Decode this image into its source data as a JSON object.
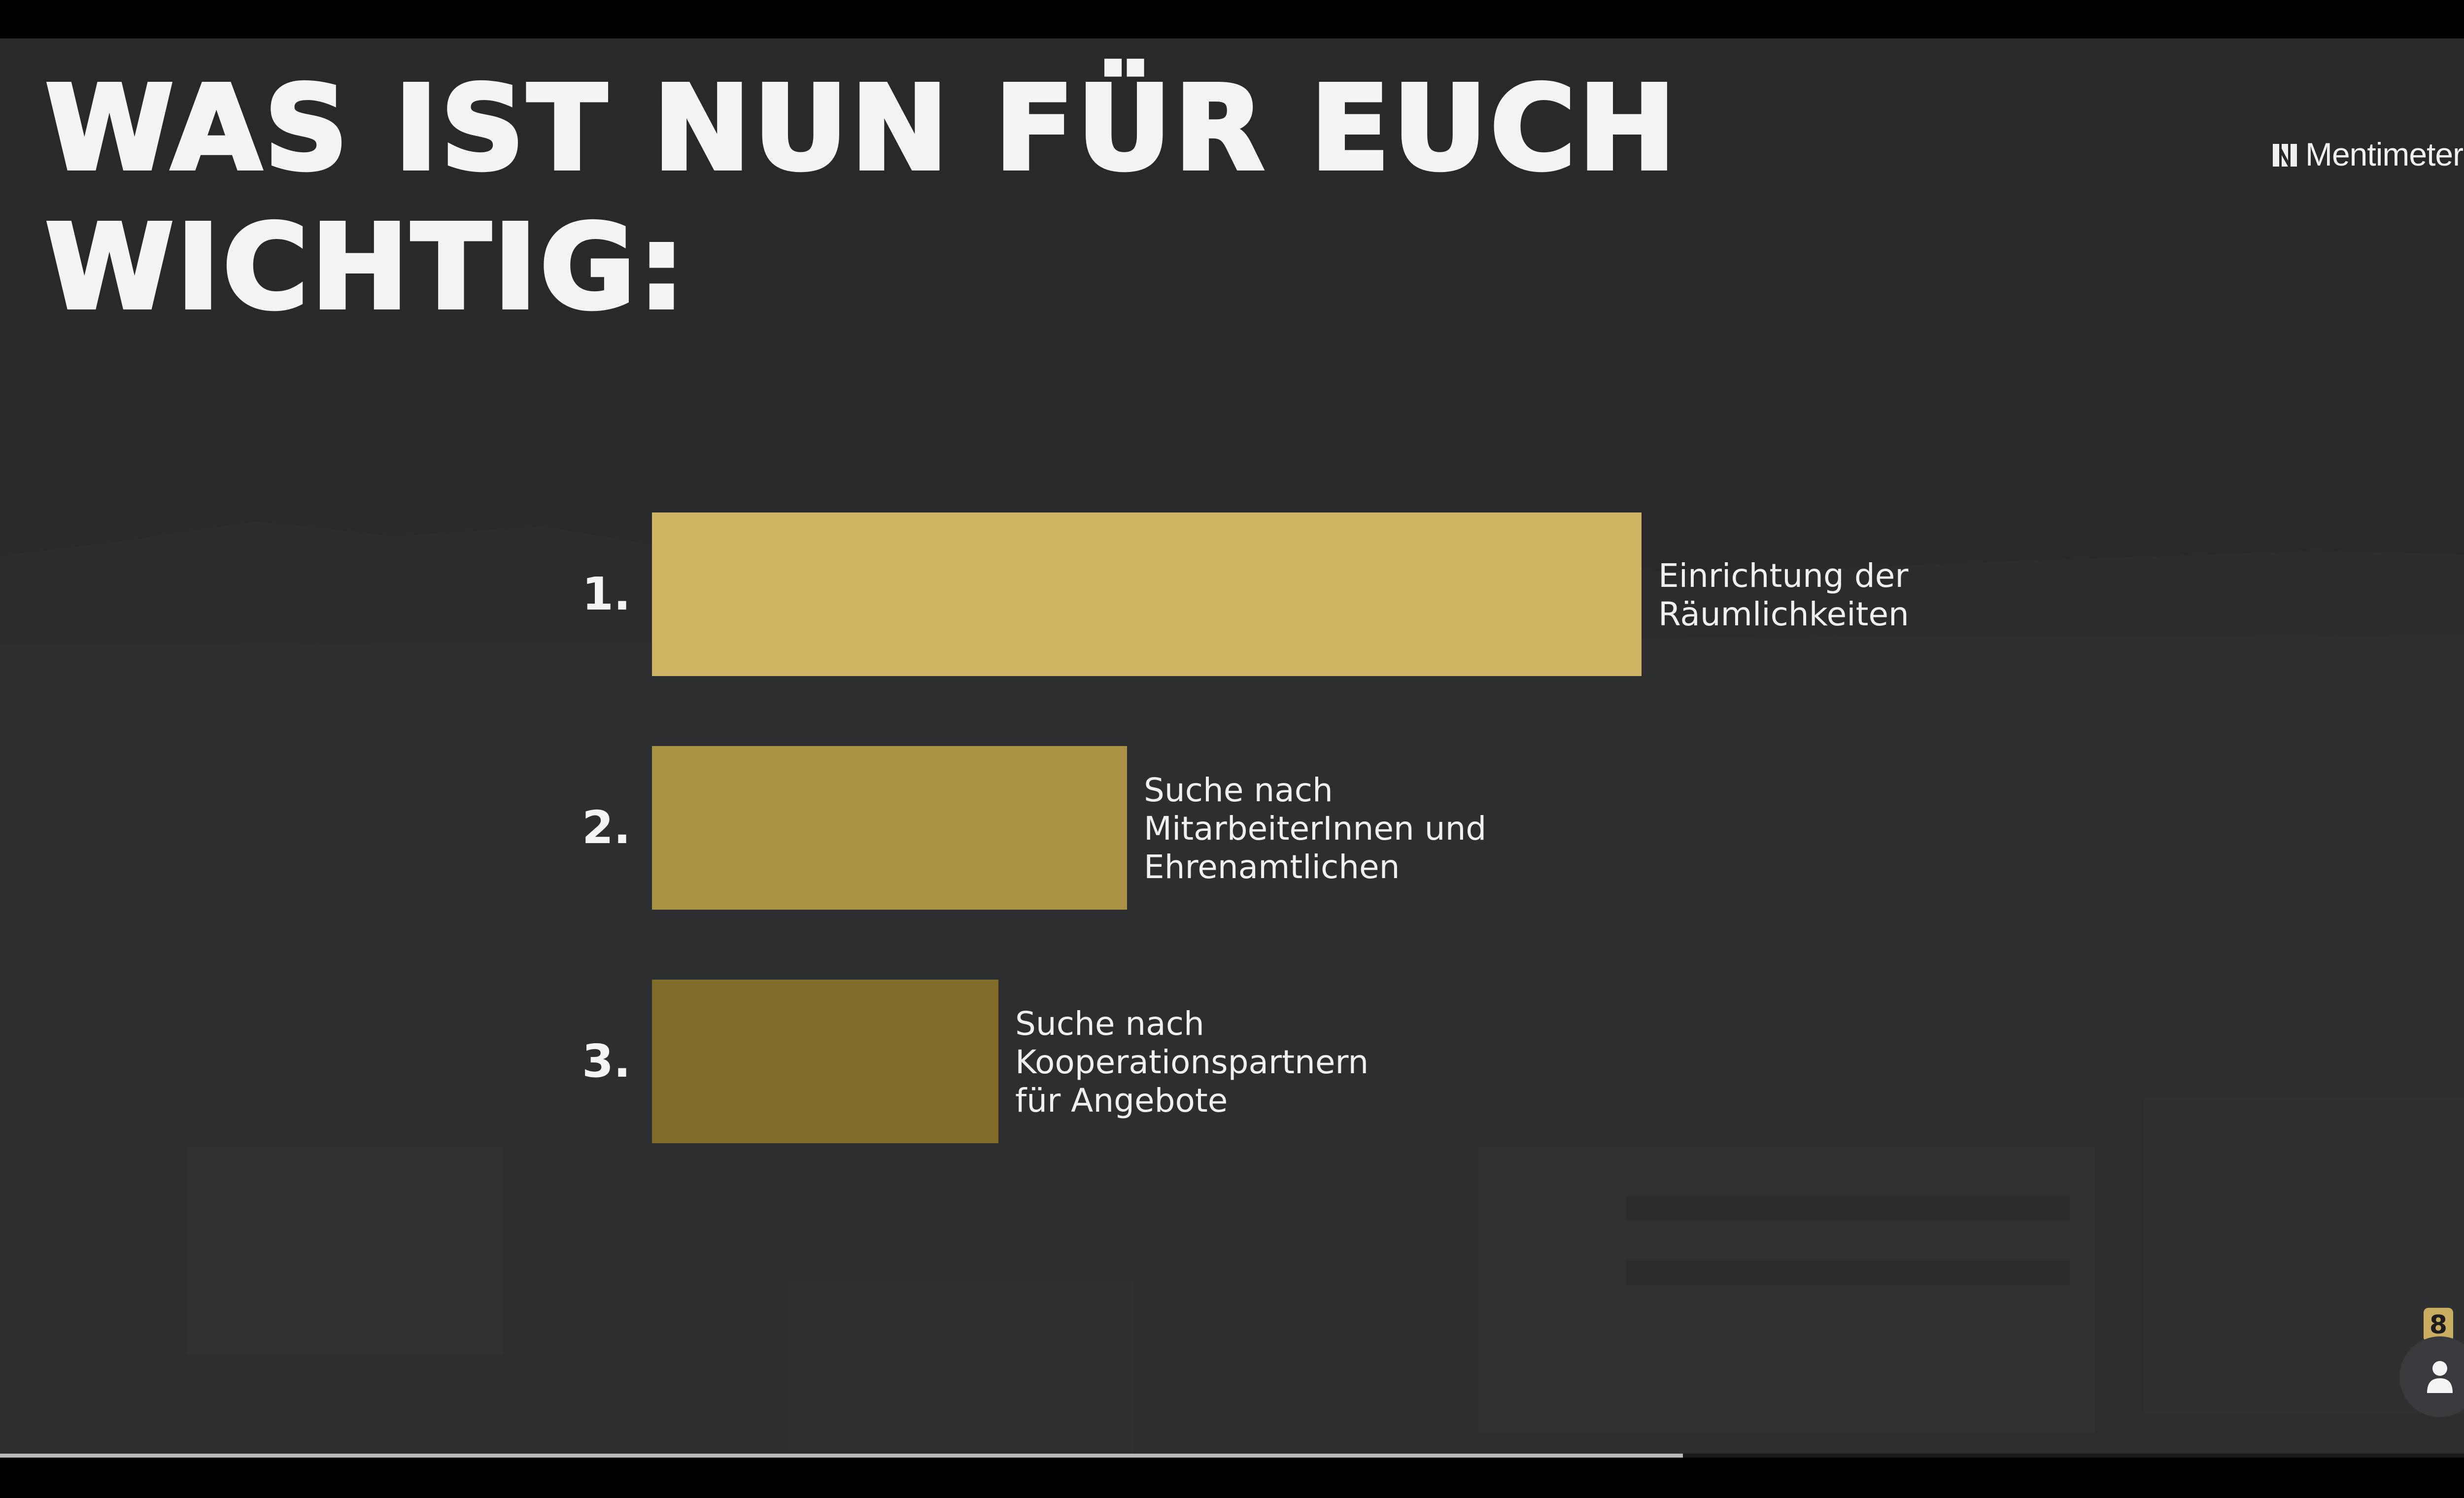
{
  "slide": {
    "title_line1": "WAS IST NUN FÜR EUCH",
    "title_line2": "WICHTIG:"
  },
  "brand": {
    "name": "Mentimeter",
    "icon": "mentimeter-logo-icon"
  },
  "chart_data": {
    "type": "bar",
    "orientation": "horizontal",
    "categories": [
      "Einrichtung der Räumlichkeiten",
      "Suche nach MitarbeiterInnen und Ehrenamtlichen",
      "Suche nach Kooperationspartnern für Angebote"
    ],
    "values": [
      100,
      48,
      35
    ],
    "value_unit": "percent of top-ranked item",
    "ranks": [
      "1.",
      "2.",
      "3."
    ],
    "label_lines": [
      [
        "Einrichtung der",
        "Räumlichkeiten"
      ],
      [
        "Suche nach",
        "MitarbeiterInnen und",
        "Ehrenamtlichen"
      ],
      [
        "Suche nach",
        "Kooperationspartnern",
        "für Angebote"
      ]
    ],
    "colors": [
      "#cfb465",
      "#a99146",
      "#826c2b"
    ]
  },
  "participants": {
    "count": "8",
    "icon": "person-icon"
  },
  "presentation_progress": 0.667,
  "colors": {
    "background": "#27292b",
    "accent": "#c9ae62",
    "text": "#f4f4f4"
  }
}
